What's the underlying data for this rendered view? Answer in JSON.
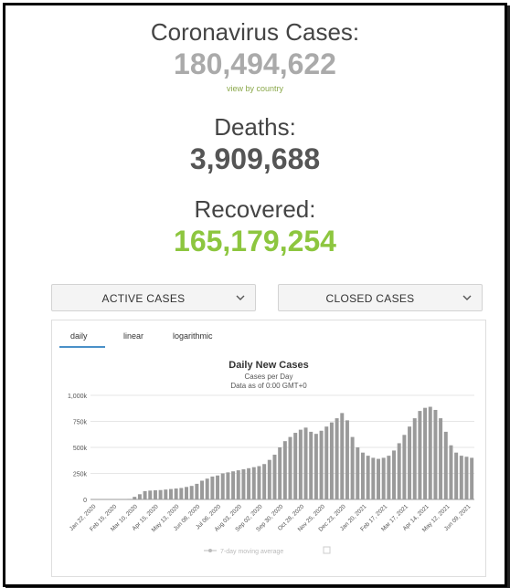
{
  "stats": {
    "cases_label": "Coronavirus Cases:",
    "cases_value": "180,494,622",
    "view_link": "view by country",
    "deaths_label": "Deaths:",
    "deaths_value": "3,909,688",
    "recovered_label": "Recovered:",
    "recovered_value": "165,179,254"
  },
  "colors": {
    "cases": "#aaaaaa",
    "deaths": "#555555",
    "recovered": "#8dc63f",
    "bars": "#9a9a9a",
    "tab_accent": "#4a90c8"
  },
  "dropdowns": {
    "active_label": "ACTIVE CASES",
    "closed_label": "CLOSED CASES"
  },
  "chart_tabs": [
    "daily",
    "linear",
    "logarithmic"
  ],
  "chart": {
    "title": "Daily New Cases",
    "subtitle": "Cases per Day",
    "note": "Data as of 0:00 GMT+0",
    "legend_label": "7-day moving average"
  },
  "chart_data": {
    "type": "bar",
    "title": "Daily New Cases",
    "ylabel": "Cases per Day",
    "ylim": [
      0,
      1000000
    ],
    "y_ticks": [
      "0",
      "250k",
      "500k",
      "750k",
      "1,000k"
    ],
    "x_ticks": [
      "Jan 22, 2020",
      "Feb 15, 2020",
      "Mar 10, 2020",
      "Apr 15, 2020",
      "May 13, 2020",
      "Jun 08, 2020",
      "Jul 06, 2020",
      "Aug 03, 2020",
      "Sep 02, 2020",
      "Sep 30, 2020",
      "Oct 28, 2020",
      "Nov 25, 2020",
      "Dec 23, 2020",
      "Jan 20, 2021",
      "Feb 17, 2021",
      "Mar 17, 2021",
      "Apr 14, 2021",
      "May 12, 2021",
      "Jun 09, 2021"
    ],
    "values": [
      0,
      0,
      0,
      0,
      0,
      0,
      0,
      5000,
      25000,
      50000,
      80000,
      85000,
      88000,
      90000,
      95000,
      100000,
      105000,
      110000,
      120000,
      130000,
      150000,
      180000,
      200000,
      220000,
      230000,
      250000,
      260000,
      270000,
      280000,
      290000,
      300000,
      310000,
      320000,
      340000,
      380000,
      430000,
      500000,
      560000,
      600000,
      640000,
      670000,
      690000,
      650000,
      630000,
      660000,
      700000,
      740000,
      780000,
      830000,
      760000,
      600000,
      500000,
      450000,
      420000,
      400000,
      390000,
      400000,
      420000,
      470000,
      540000,
      620000,
      700000,
      780000,
      850000,
      880000,
      890000,
      860000,
      780000,
      650000,
      520000,
      450000,
      420000,
      410000,
      400000
    ]
  }
}
